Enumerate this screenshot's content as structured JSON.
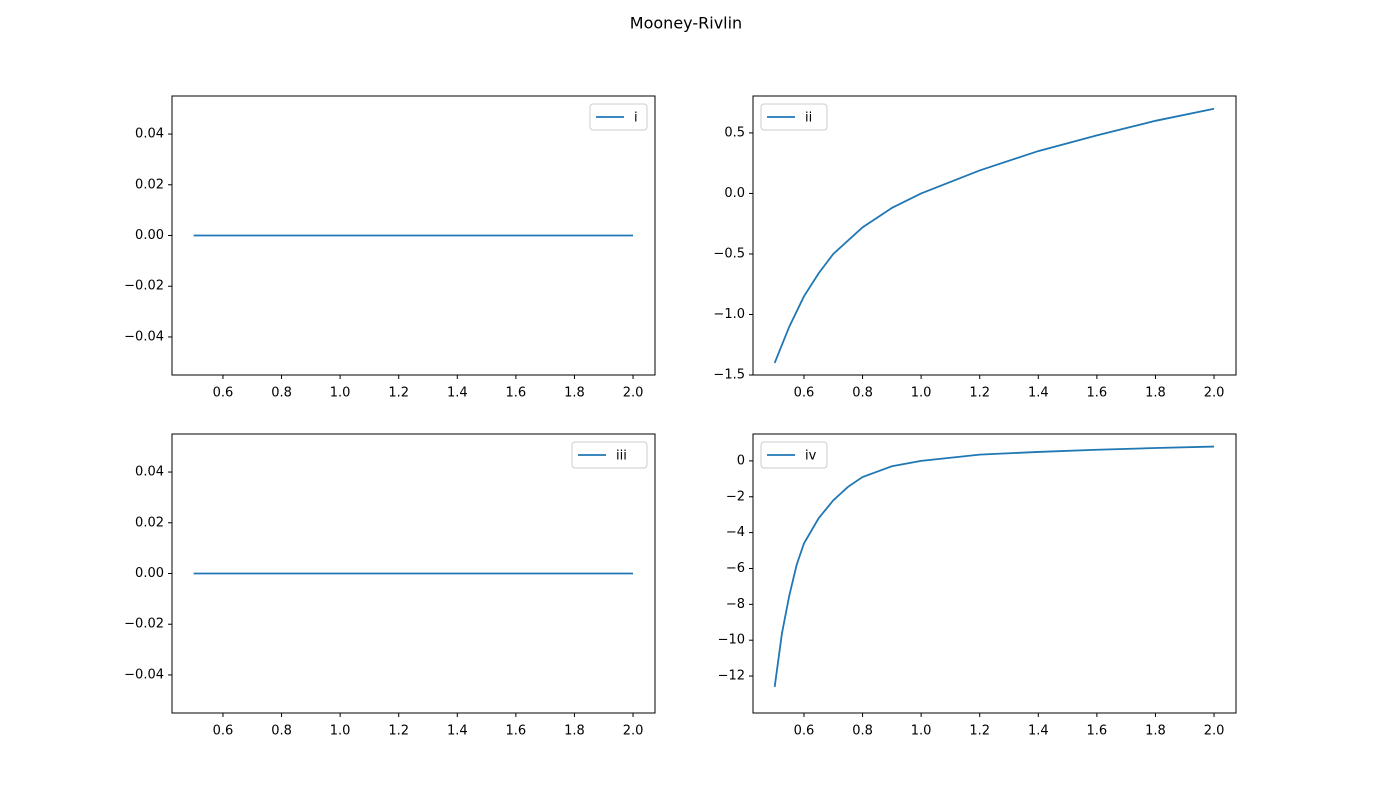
{
  "title": "Mooney-Rivlin",
  "chart_data": [
    {
      "type": "line",
      "x": [
        0.5,
        0.6,
        0.7,
        0.8,
        0.9,
        1.0,
        1.2,
        1.4,
        1.6,
        1.8,
        2.0
      ],
      "series": [
        {
          "name": "i",
          "color": "#1f77b4",
          "values": [
            0,
            0,
            0,
            0,
            0,
            0,
            0,
            0,
            0,
            0,
            0
          ]
        }
      ],
      "xlim": [
        0.426,
        2.075
      ],
      "ylim": [
        -0.055,
        0.055
      ],
      "xticks": [
        0.6,
        0.8,
        {
          "value": 1.0,
          "label": "1.0"
        },
        1.2,
        1.4,
        1.6,
        1.8,
        {
          "value": 2.0,
          "label": "2.0"
        }
      ],
      "yticks": [
        {
          "value": -0.04,
          "label": "−0.04"
        },
        {
          "value": -0.02,
          "label": "−0.02"
        },
        {
          "value": 0,
          "label": "0.00"
        },
        {
          "value": 0.02,
          "label": "0.02"
        },
        {
          "value": 0.04,
          "label": "0.04"
        }
      ],
      "legend": "upper right"
    },
    {
      "type": "line",
      "x": [
        0.5,
        0.55,
        0.6,
        0.65,
        0.7,
        0.8,
        0.9,
        1.0,
        1.2,
        1.4,
        1.6,
        1.8,
        2.0
      ],
      "series": [
        {
          "name": "ii",
          "color": "#1f77b4",
          "values": [
            -1.4,
            -1.1,
            -0.85,
            -0.66,
            -0.5,
            -0.28,
            -0.12,
            0.0,
            0.19,
            0.35,
            0.48,
            0.6,
            0.7
          ]
        }
      ],
      "xlim": [
        0.426,
        2.075
      ],
      "ylim": [
        -1.5,
        0.805
      ],
      "xticks": [
        0.6,
        0.8,
        {
          "value": 1.0,
          "label": "1.0"
        },
        1.2,
        1.4,
        1.6,
        1.8,
        {
          "value": 2.0,
          "label": "2.0"
        }
      ],
      "yticks": [
        {
          "value": -1.5,
          "label": "−1.5"
        },
        {
          "value": -1.0,
          "label": "−1.0"
        },
        {
          "value": -0.5,
          "label": "−0.5"
        },
        {
          "value": 0,
          "label": "0.0"
        },
        0.5
      ],
      "legend": "upper left"
    },
    {
      "type": "line",
      "x": [
        0.5,
        0.6,
        0.7,
        0.8,
        0.9,
        1.0,
        1.2,
        1.4,
        1.6,
        1.8,
        2.0
      ],
      "series": [
        {
          "name": "iii",
          "color": "#1f77b4",
          "values": [
            0,
            0,
            0,
            0,
            0,
            0,
            0,
            0,
            0,
            0,
            0
          ]
        }
      ],
      "xlim": [
        0.426,
        2.075
      ],
      "ylim": [
        -0.055,
        0.055
      ],
      "xticks": [
        0.6,
        0.8,
        {
          "value": 1.0,
          "label": "1.0"
        },
        1.2,
        1.4,
        1.6,
        1.8,
        {
          "value": 2.0,
          "label": "2.0"
        }
      ],
      "yticks": [
        {
          "value": -0.04,
          "label": "−0.04"
        },
        {
          "value": -0.02,
          "label": "−0.02"
        },
        {
          "value": 0,
          "label": "0.00"
        },
        {
          "value": 0.02,
          "label": "0.02"
        },
        {
          "value": 0.04,
          "label": "0.04"
        }
      ],
      "legend": "upper right"
    },
    {
      "type": "line",
      "x": [
        0.5,
        0.525,
        0.55,
        0.575,
        0.6,
        0.65,
        0.7,
        0.75,
        0.8,
        0.9,
        1.0,
        1.2,
        1.4,
        1.6,
        1.8,
        2.0
      ],
      "series": [
        {
          "name": "iv",
          "color": "#1f77b4",
          "values": [
            -12.6,
            -9.6,
            -7.5,
            -5.8,
            -4.6,
            -3.2,
            -2.2,
            -1.45,
            -0.9,
            -0.3,
            0.0,
            0.35,
            0.5,
            0.62,
            0.72,
            0.8
          ]
        }
      ],
      "xlim": [
        0.426,
        2.075
      ],
      "ylim": [
        -14.06,
        1.5
      ],
      "xticks": [
        0.6,
        0.8,
        {
          "value": 1.0,
          "label": "1.0"
        },
        1.2,
        1.4,
        1.6,
        1.8,
        {
          "value": 2.0,
          "label": "2.0"
        }
      ],
      "yticks": [
        {
          "value": -12,
          "label": "−12"
        },
        {
          "value": -10,
          "label": "−10"
        },
        {
          "value": -8,
          "label": "−8"
        },
        {
          "value": -6,
          "label": "−6"
        },
        {
          "value": -4,
          "label": "−4"
        },
        {
          "value": -2,
          "label": "−2"
        },
        0
      ],
      "legend": "upper left"
    }
  ]
}
